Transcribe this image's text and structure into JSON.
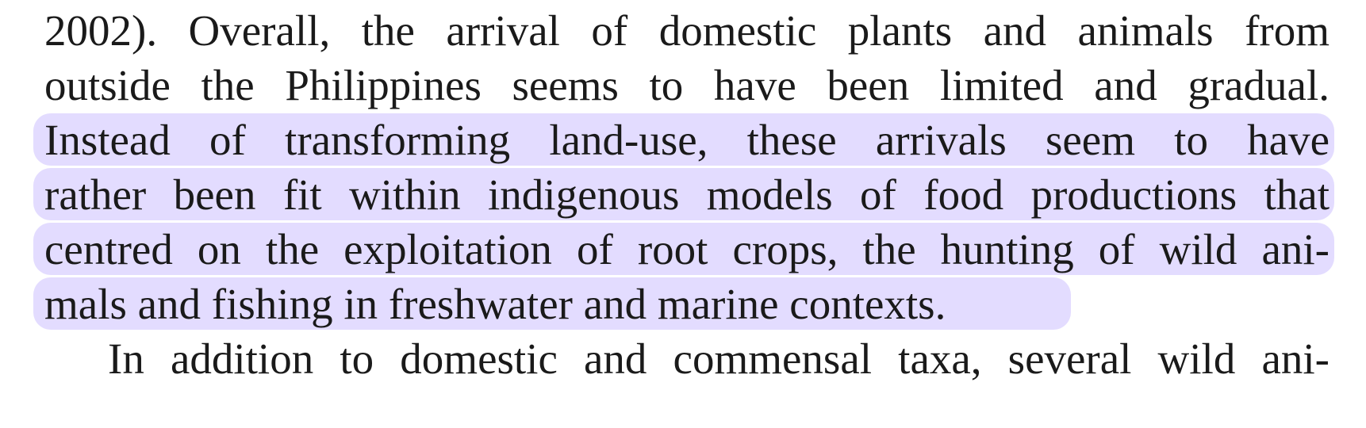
{
  "document": {
    "lines": [
      "2002). Overall, the arrival of domestic plants and animals from",
      "outside the Philippines seems to have been limited and gradual.",
      "Instead of transforming land-use, these arrivals seem to have",
      "rather been fit within indigenous models of food productions that",
      "centred on the exploitation of root crops, the hunting of wild ani-",
      "mals and fishing in freshwater and marine contexts.",
      "In addition to domestic and commensal taxa, several wild ani-"
    ],
    "highlight_color": "#e3dcff"
  }
}
